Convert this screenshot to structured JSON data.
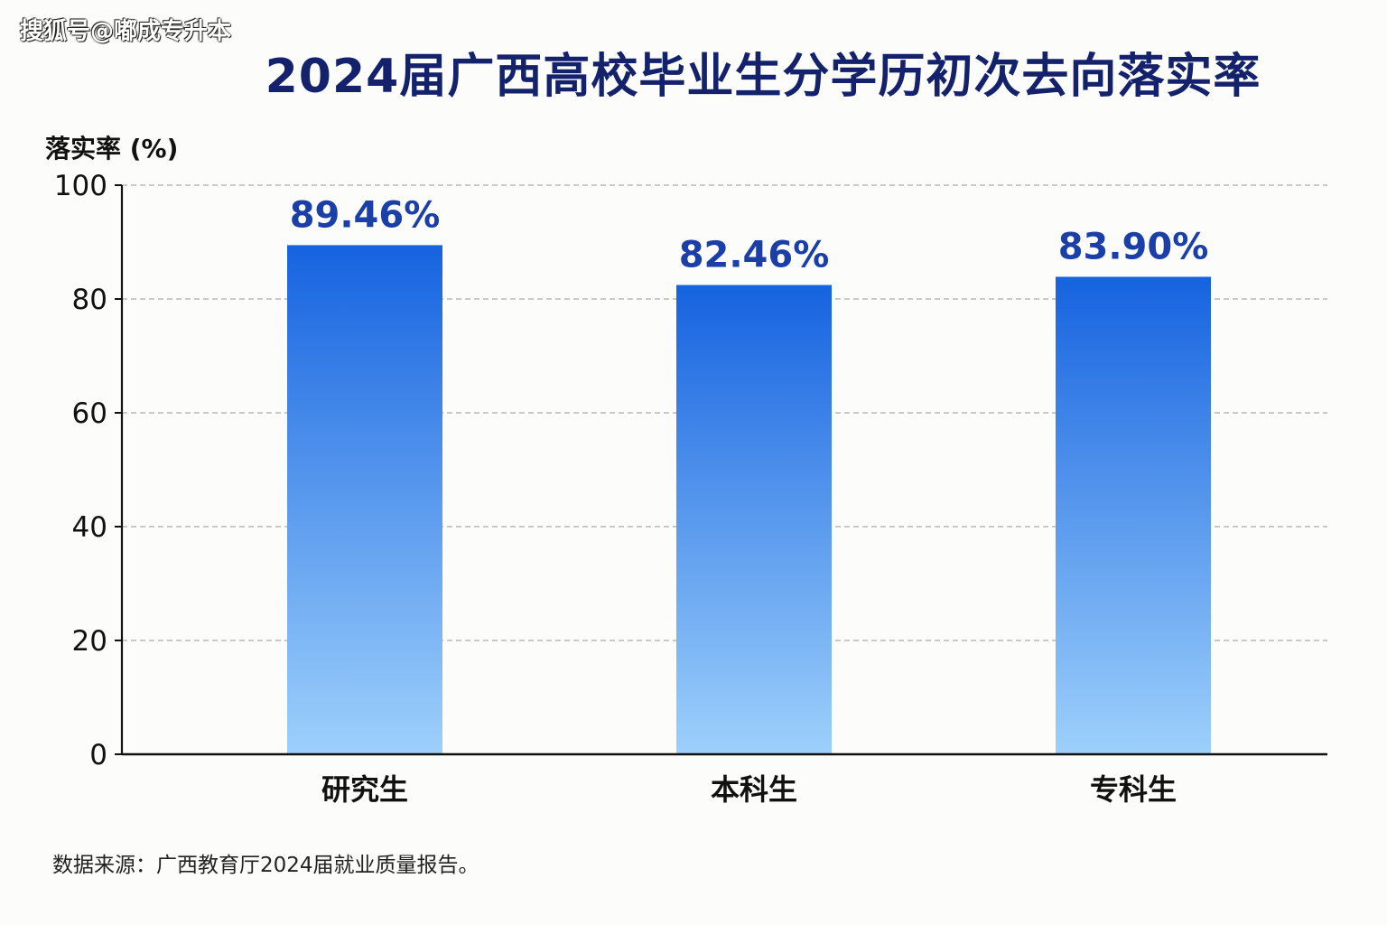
{
  "watermark": "搜狐号@嘟成专升本",
  "chart_data": {
    "type": "bar",
    "title": "2024届广西高校毕业生分学历初次去向落实率",
    "ylabel": "落实率 (%)",
    "xlabel": "",
    "categories": [
      "研究生",
      "本科生",
      "专科生"
    ],
    "values": [
      89.46,
      82.46,
      83.9
    ],
    "data_labels": [
      "89.46%",
      "82.46%",
      "83.90%"
    ],
    "ylim": [
      0,
      100
    ],
    "yticks": [
      0,
      20,
      40,
      60,
      80,
      100
    ],
    "grid": true,
    "legend": "none",
    "colors": {
      "bar_top": "#1663e0",
      "bar_bottom": "#9dd0fb",
      "label": "#1a3fa8",
      "grid": "#b8b8b8",
      "axis": "#111111"
    }
  },
  "source": "数据来源：广西教育厅2024届就业质量报告。"
}
